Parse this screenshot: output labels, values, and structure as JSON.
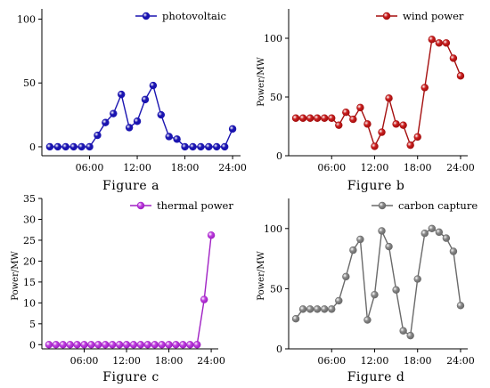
{
  "panels": [
    {
      "caption": "Figure a",
      "color": "#1a14b0",
      "marker_fill": "#1a14b0",
      "chart_data": {
        "type": "line",
        "x": [
          1,
          2,
          3,
          4,
          5,
          6,
          7,
          8,
          9,
          10,
          11,
          12,
          13,
          14,
          15,
          16,
          17,
          18,
          19,
          20,
          21,
          22,
          23,
          24
        ],
        "series": [
          {
            "name": "photovoltaic",
            "values": [
              0,
              0,
              0,
              0,
              0,
              0,
              9,
              19,
              26,
              41,
              15,
              20,
              37,
              48,
              25,
              8,
              6,
              0,
              0,
              0,
              0,
              0,
              0,
              14
            ]
          }
        ],
        "xticks": [
          6,
          12,
          18,
          24
        ],
        "xtick_labels": [
          "06:00",
          "12:00",
          "18:00",
          "24:00"
        ],
        "yticks": [
          0,
          50,
          100
        ],
        "ylim": [
          -7,
          108
        ],
        "xlim": [
          0,
          25
        ],
        "ylabel": "",
        "legend": "top-right"
      }
    },
    {
      "caption": "Figure b",
      "color": "#a50f0f",
      "marker_fill": "#cc2020",
      "chart_data": {
        "type": "line",
        "x": [
          1,
          2,
          3,
          4,
          5,
          6,
          7,
          8,
          9,
          10,
          11,
          12,
          13,
          14,
          15,
          16,
          17,
          18,
          19,
          20,
          21,
          22,
          23,
          24
        ],
        "series": [
          {
            "name": "wind power",
            "values": [
              32,
              32,
              32,
              32,
              32,
              32,
              26,
              37,
              31,
              41,
              27,
              8,
              20,
              49,
              27,
              26,
              9,
              16,
              58,
              99,
              96,
              96,
              83,
              68
            ]
          }
        ],
        "xticks": [
          6,
          12,
          18,
          24
        ],
        "xtick_labels": [
          "06:00",
          "12:00",
          "18:00",
          "24:00"
        ],
        "yticks": [
          0,
          50,
          100
        ],
        "ylim": [
          0,
          125
        ],
        "xlim": [
          0,
          25
        ],
        "ylabel": "Power/MW",
        "legend": "top-right"
      }
    },
    {
      "caption": "Figure c",
      "color": "#a021c4",
      "marker_fill": "#c040e0",
      "chart_data": {
        "type": "line",
        "x": [
          1,
          2,
          3,
          4,
          5,
          6,
          7,
          8,
          9,
          10,
          11,
          12,
          13,
          14,
          15,
          16,
          17,
          18,
          19,
          20,
          21,
          22,
          23,
          24
        ],
        "series": [
          {
            "name": "thermal power",
            "values": [
              0,
              0,
              0,
              0,
              0,
              0,
              0,
              0,
              0,
              0,
              0,
              0,
              0,
              0,
              0,
              0,
              0,
              0,
              0,
              0,
              0,
              0,
              10.8,
              26.2
            ]
          }
        ],
        "xticks": [
          6,
          12,
          18,
          24
        ],
        "xtick_labels": [
          "06:00",
          "12:00",
          "18:00",
          "24:00"
        ],
        "yticks": [
          0,
          5,
          10,
          15,
          20,
          25,
          30,
          35
        ],
        "ylim": [
          -1,
          35
        ],
        "xlim": [
          0,
          25
        ],
        "ylabel": "Power/MW",
        "legend": "top-right"
      }
    },
    {
      "caption": "Figure d",
      "color": "#6a6a6a",
      "marker_fill": "#8a8a8a",
      "chart_data": {
        "type": "line",
        "x": [
          1,
          2,
          3,
          4,
          5,
          6,
          7,
          8,
          9,
          10,
          11,
          12,
          13,
          14,
          15,
          16,
          17,
          18,
          19,
          20,
          21,
          22,
          23,
          24
        ],
        "series": [
          {
            "name": "carbon capture",
            "values": [
              25,
              33,
              33,
              33,
              33,
              33,
              40,
              60,
              82,
              91,
              24,
              45,
              98,
              85,
              49,
              15,
              11,
              58,
              96,
              100,
              97,
              92,
              81,
              36
            ]
          }
        ],
        "xticks": [
          6,
          12,
          18,
          24
        ],
        "xtick_labels": [
          "06:00",
          "12:00",
          "18:00",
          "24:00"
        ],
        "yticks": [
          0,
          50,
          100
        ],
        "ylim": [
          0,
          125
        ],
        "xlim": [
          0,
          25
        ],
        "ylabel": "Power/MW",
        "legend": "top-right"
      }
    }
  ]
}
